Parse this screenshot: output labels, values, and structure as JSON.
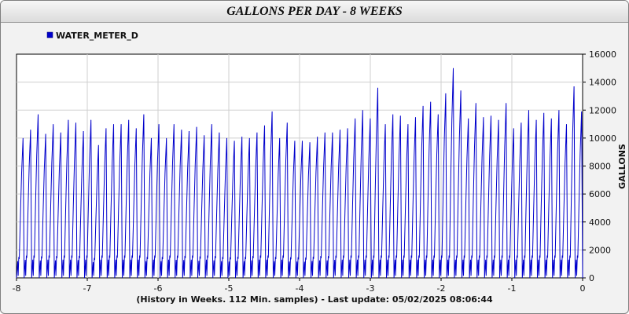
{
  "chart_data": {
    "type": "line",
    "title": "GALLONS PER DAY - 8 WEEKS",
    "xlabel": "(History in Weeks. 112 Min. samples) - Last update: 05/02/2025 08:06:44",
    "ylabel": "GALLONS",
    "xlim": [
      -8,
      0
    ],
    "ylim": [
      0,
      16000
    ],
    "x_ticks": [
      "-8",
      "-7",
      "-6",
      "-5",
      "-4",
      "-3",
      "-2",
      "-1",
      "0"
    ],
    "y_ticks": [
      "0",
      "2000",
      "4000",
      "6000",
      "8000",
      "10000",
      "12000",
      "14000",
      "16000"
    ],
    "grid": true,
    "legend_position": "top-left",
    "series": [
      {
        "name": "WATER_METER_D",
        "color": "#0000cc",
        "daily_peaks": [
          10000,
          10600,
          11700,
          10300,
          11000,
          10400,
          11300,
          11100,
          10500,
          11300,
          9500,
          10700,
          11000,
          11000,
          11300,
          10700,
          11700,
          10000,
          11000,
          10000,
          11000,
          10600,
          10500,
          10800,
          10200,
          11000,
          10400,
          10000,
          9800,
          10100,
          10000,
          10400,
          10900,
          11900,
          10000,
          11100,
          9800,
          9800,
          9700,
          10100,
          10400,
          10400,
          10600,
          10700,
          11400,
          12000,
          11400,
          13600,
          11000,
          11700,
          11600,
          11000,
          11500,
          12300,
          12600,
          11700,
          13200,
          15000,
          13400,
          11400,
          12500,
          11500,
          11600,
          11300,
          12500,
          10700,
          11100,
          12000,
          11300,
          11800,
          11400,
          12000,
          11000,
          13700,
          11900
        ]
      }
    ]
  }
}
